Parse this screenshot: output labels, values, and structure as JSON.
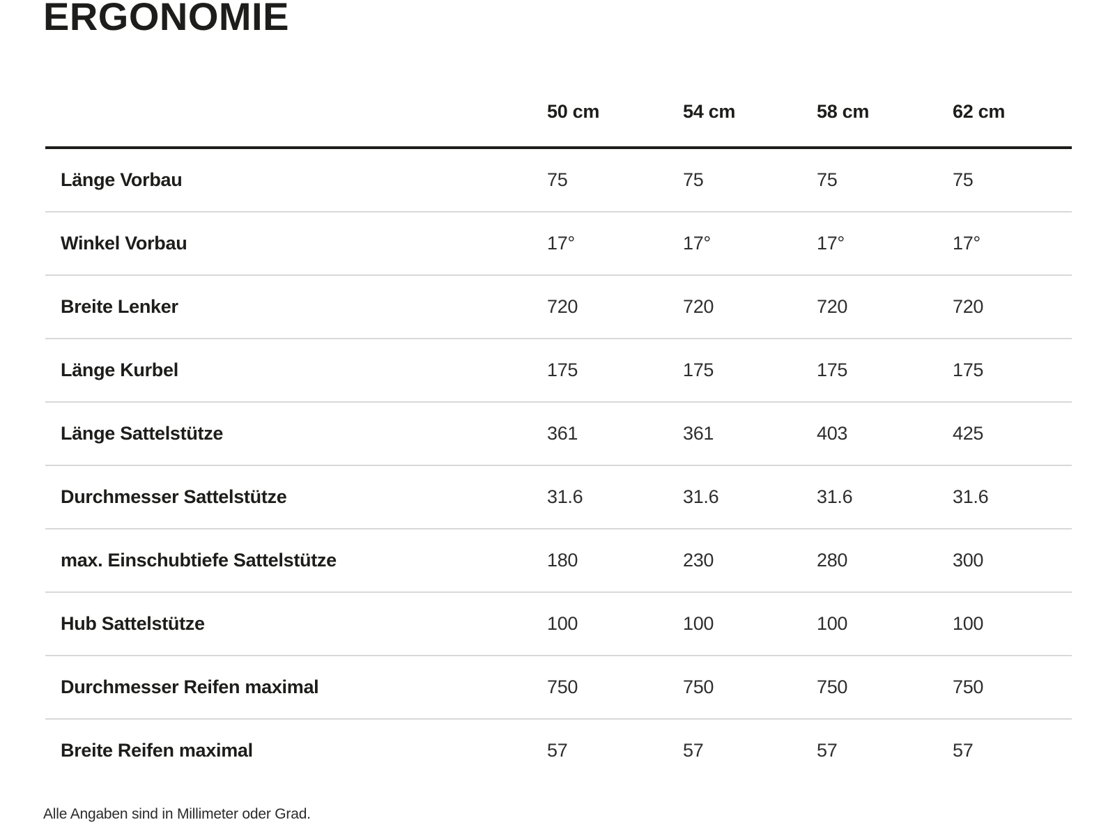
{
  "page": {
    "title": "ERGONOMIE",
    "footnote": "Alle Angaben sind in Millimeter oder Grad."
  },
  "table": {
    "columns": [
      "50 cm",
      "54 cm",
      "58 cm",
      "62 cm"
    ],
    "rows": [
      {
        "label": "Länge Vorbau",
        "values": [
          "75",
          "75",
          "75",
          "75"
        ]
      },
      {
        "label": "Winkel Vorbau",
        "values": [
          "17°",
          "17°",
          "17°",
          "17°"
        ]
      },
      {
        "label": "Breite Lenker",
        "values": [
          "720",
          "720",
          "720",
          "720"
        ]
      },
      {
        "label": "Länge Kurbel",
        "values": [
          "175",
          "175",
          "175",
          "175"
        ]
      },
      {
        "label": "Länge Sattelstütze",
        "values": [
          "361",
          "361",
          "403",
          "425"
        ]
      },
      {
        "label": "Durchmesser Sattelstütze",
        "values": [
          "31.6",
          "31.6",
          "31.6",
          "31.6"
        ]
      },
      {
        "label": "max. Einschubtiefe Sattelstütze",
        "values": [
          "180",
          "230",
          "280",
          "300"
        ]
      },
      {
        "label": "Hub Sattelstütze",
        "values": [
          "100",
          "100",
          "100",
          "100"
        ]
      },
      {
        "label": "Durchmesser Reifen maximal",
        "values": [
          "750",
          "750",
          "750",
          "750"
        ]
      },
      {
        "label": "Breite Reifen maximal",
        "values": [
          "57",
          "57",
          "57",
          "57"
        ]
      }
    ]
  },
  "colors": {
    "text": "#1d1d1b",
    "value_text": "#2e2e2e",
    "header_rule": "#1d1d1b",
    "row_divider": "#d8d8d8",
    "background": "#ffffff"
  }
}
